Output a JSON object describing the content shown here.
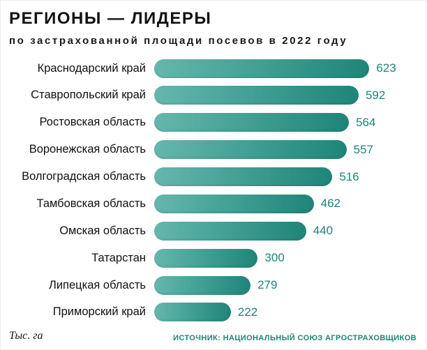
{
  "header": {
    "title": "РЕГИОНЫ — ЛИДЕРЫ",
    "subtitle": "по застрахованной площади посевов в 2022 году"
  },
  "chart_data": {
    "type": "bar",
    "orientation": "horizontal",
    "title": "РЕГИОНЫ — ЛИДЕРЫ",
    "subtitle": "по застрахованной площади посевов в 2022 году",
    "unit_label": "Тыс. га",
    "categories": [
      "Краснодарский край",
      "Ставропольский край",
      "Ростовская область",
      "Воронежская область",
      "Волгоградская область",
      "Тамбовская область",
      "Омская область",
      "Татарстан",
      "Липецкая область",
      "Приморский край"
    ],
    "values": [
      623,
      592,
      564,
      557,
      516,
      462,
      440,
      300,
      279,
      222
    ],
    "xlabel": "",
    "ylabel": "",
    "xlim": [
      0,
      650
    ],
    "grid": false,
    "legend": false,
    "bar_color_start": "#66b7ad",
    "bar_color_end": "#1f8578",
    "value_label_color": "#1e8478",
    "source": "ИСТОЧНИК: НАЦИОНАЛЬНЫЙ СОЮЗ АГРОСТРАХОВЩИКОВ"
  },
  "footer": {
    "unit": "Тыс. га",
    "source": "ИСТОЧНИК: НАЦИОНАЛЬНЫЙ СОЮЗ АГРОСТРАХОВЩИКОВ"
  }
}
